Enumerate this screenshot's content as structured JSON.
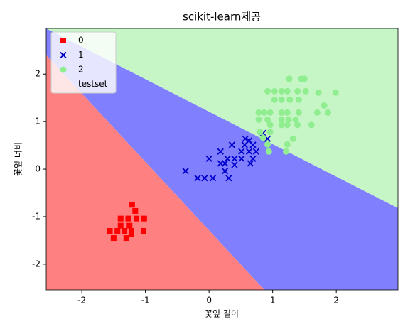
{
  "chart_data": {
    "type": "scatter",
    "title": "scikit-learn제공",
    "x_label": "꽃잎 길이",
    "y_label": "꽃잎 너비",
    "xlim": [
      -2.56,
      2.97
    ],
    "ylim": [
      -2.54,
      2.96
    ],
    "xticks": [
      -2,
      -1,
      0,
      1,
      2
    ],
    "yticks": [
      -2,
      -1,
      0,
      1,
      2
    ],
    "legend": "upper left",
    "regions": [
      {
        "color": "#ff8080",
        "x": [
          -2.56,
          0.87,
          -2.56
        ],
        "y": [
          2.4,
          -2.54,
          -2.54
        ]
      },
      {
        "color": "#8080ff",
        "x": [
          -2.56,
          2.97,
          2.97,
          0.87,
          -2.56
        ],
        "y": [
          2.96,
          -0.82,
          -2.54,
          -2.54,
          2.4
        ]
      },
      {
        "color": "#c6f5c6",
        "x": [
          -2.56,
          2.97,
          2.97
        ],
        "y": [
          2.96,
          2.96,
          -0.82
        ]
      }
    ],
    "series": [
      {
        "name": "0",
        "color": "#ff0000",
        "marker": "square",
        "x": [
          -1.21,
          -1.16,
          -1.39,
          -1.27,
          -1.14,
          -1.02,
          -1.56,
          -1.44,
          -1.33,
          -1.22,
          -1.03,
          -1.39,
          -1.25,
          -1.5,
          -1.3,
          -1.22
        ],
        "y": [
          -0.75,
          -0.88,
          -1.04,
          -1.04,
          -1.04,
          -1.04,
          -1.3,
          -1.3,
          -1.3,
          -1.3,
          -1.3,
          -1.19,
          -1.19,
          -1.45,
          -1.45,
          -1.37
        ]
      },
      {
        "name": "1",
        "color": "#0000cc",
        "marker": "x",
        "x": [
          -0.37,
          -0.18,
          -0.07,
          0.06,
          0.0,
          0.18,
          0.25,
          0.31,
          0.18,
          0.29,
          0.4,
          0.36,
          0.51,
          0.51,
          0.63,
          0.65,
          0.57,
          0.69,
          0.74,
          0.85,
          0.92,
          0.25,
          0.4,
          0.56,
          0.63,
          0.69
        ],
        "y": [
          -0.04,
          -0.19,
          -0.19,
          -0.19,
          0.22,
          0.12,
          -0.04,
          -0.19,
          0.37,
          0.22,
          0.22,
          0.51,
          0.37,
          0.22,
          0.37,
          0.12,
          0.64,
          0.51,
          0.37,
          0.76,
          0.64,
          0.12,
          0.09,
          0.51,
          0.6,
          0.22
        ]
      },
      {
        "name": "2",
        "color": "#90ee90",
        "marker": "circle",
        "x": [
          1.26,
          1.5,
          1.45,
          0.92,
          1.03,
          1.14,
          1.23,
          1.39,
          1.52,
          1.72,
          1.99,
          1.03,
          1.14,
          1.27,
          1.41,
          1.81,
          0.78,
          0.87,
          0.96,
          1.14,
          1.23,
          1.41,
          1.7,
          1.87,
          0.78,
          0.92,
          1.14,
          1.25,
          1.36,
          0.96,
          1.14,
          1.23,
          1.39,
          1.61,
          0.8,
          0.96,
          0.85,
          0.92,
          1.23,
          1.32,
          1.21,
          0.94
        ],
        "y": [
          1.9,
          1.9,
          1.9,
          1.64,
          1.64,
          1.64,
          1.64,
          1.64,
          1.64,
          1.61,
          1.61,
          1.46,
          1.46,
          1.46,
          1.46,
          1.34,
          1.19,
          1.19,
          1.19,
          1.19,
          1.19,
          1.19,
          1.19,
          1.19,
          1.04,
          1.04,
          1.04,
          1.04,
          1.04,
          0.93,
          0.93,
          0.93,
          0.93,
          0.93,
          0.78,
          0.78,
          0.66,
          0.52,
          0.52,
          0.64,
          0.37,
          0.37
        ]
      },
      {
        "name": "testset",
        "color": "none",
        "marker": "circle",
        "x": [],
        "y": []
      }
    ]
  }
}
